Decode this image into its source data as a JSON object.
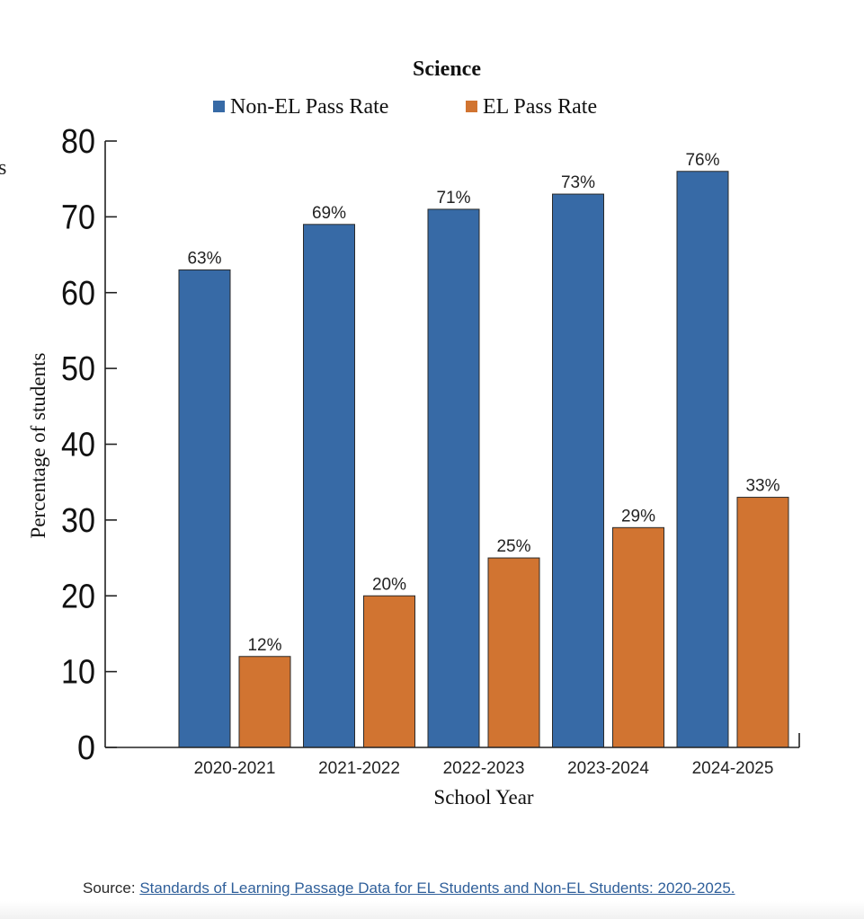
{
  "cropped_left_text": "s",
  "source": {
    "prefix": "Source:",
    "link_text": "Standards of Learning Passage Data for EL Students and Non-EL Students: 2020-2025."
  },
  "chart_data": {
    "type": "bar",
    "title": "Science",
    "xlabel": "School Year",
    "ylabel": "Percentage of students",
    "ylim": [
      0,
      80
    ],
    "yticks": [
      0,
      10,
      20,
      30,
      40,
      50,
      60,
      70,
      80
    ],
    "grid": false,
    "legend_position": "top-center",
    "categories": [
      "2020-2021",
      "2021-2022",
      "2022-2023",
      "2023-2024",
      "2024-2025"
    ],
    "series": [
      {
        "name": "Non-EL Pass Rate",
        "color": "#376aa6",
        "values": [
          63,
          69,
          71,
          73,
          76
        ],
        "labels": [
          "63%",
          "69%",
          "71%",
          "73%",
          "76%"
        ]
      },
      {
        "name": "EL Pass Rate",
        "color": "#d17431",
        "values": [
          12,
          20,
          25,
          29,
          33
        ],
        "labels": [
          "12%",
          "20%",
          "25%",
          "29%",
          "33%"
        ]
      }
    ]
  }
}
